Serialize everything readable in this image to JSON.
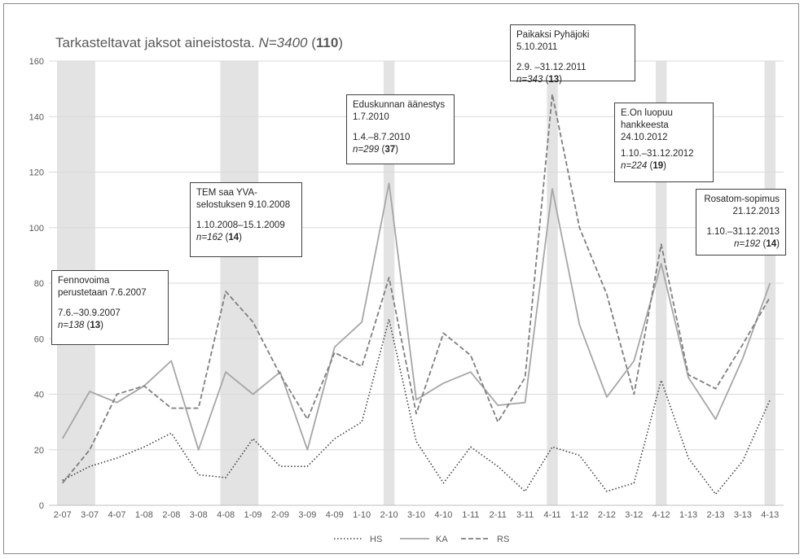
{
  "chart_data": {
    "type": "line",
    "title": {
      "prefix": "Tarkasteltavat jaksot aineistosta. ",
      "n_italic": "N=3400",
      "space": " (",
      "n_bold": "110",
      "close": ")"
    },
    "categories": [
      "2-07",
      "3-07",
      "4-07",
      "1-08",
      "2-08",
      "3-08",
      "4-08",
      "1-09",
      "2-09",
      "3-09",
      "4-09",
      "1-10",
      "2-10",
      "3-10",
      "4-10",
      "1-11",
      "2-11",
      "3-11",
      "4-11",
      "1-12",
      "2-12",
      "3-12",
      "4-12",
      "1-13",
      "2-13",
      "3-13",
      "4-13"
    ],
    "ylim": [
      0,
      160
    ],
    "yticks": [
      0,
      20,
      40,
      60,
      80,
      100,
      120,
      140,
      160
    ],
    "grid": true,
    "legend_position": "bottom",
    "series": [
      {
        "name": "HS",
        "style": "dotted",
        "color": "#404040",
        "values": [
          9,
          14,
          17,
          21,
          26,
          11,
          10,
          24,
          14,
          14,
          24,
          30,
          67,
          23,
          8,
          21,
          14,
          5,
          21,
          18,
          5,
          8,
          45,
          17,
          4,
          16,
          38
        ]
      },
      {
        "name": "KA",
        "style": "solid",
        "color": "#a6a6a6",
        "values": [
          24,
          41,
          37,
          43,
          52,
          20,
          48,
          40,
          48,
          20,
          57,
          66,
          116,
          38,
          44,
          48,
          36,
          37,
          114,
          65,
          39,
          52,
          87,
          46,
          31,
          53,
          80
        ]
      },
      {
        "name": "RS",
        "style": "dashed",
        "color": "#7f7f7f",
        "values": [
          8,
          20,
          40,
          43,
          35,
          35,
          77,
          66,
          47,
          31,
          55,
          50,
          82,
          33,
          62,
          54,
          30,
          46,
          148,
          100,
          76,
          40,
          94,
          47,
          42,
          58,
          75
        ]
      }
    ],
    "shaded_periods": [
      {
        "from": "2-07",
        "to": "3-07"
      },
      {
        "from": "4-08",
        "to": "1-09"
      },
      {
        "from": "2-10",
        "to": "2-10"
      },
      {
        "from": "4-11",
        "to": "4-11"
      },
      {
        "from": "4-12",
        "to": "4-12"
      },
      {
        "from": "4-13",
        "to": "4-13"
      }
    ],
    "annotations": [
      {
        "id": "fennovoima",
        "lines": [
          "Fennovoima",
          "perustetaan 7.6.2007"
        ],
        "period": "7.6.–30.9.2007",
        "n_italic": "n=138",
        "n_bold": "13"
      },
      {
        "id": "tem",
        "lines": [
          "TEM saa YVA-",
          "selostuksen 9.10.2008"
        ],
        "period": "1.10.2008–15.1.2009",
        "n_italic": "n=162",
        "n_bold": "14"
      },
      {
        "id": "eduskunta",
        "lines": [
          "Eduskunnan äänestys",
          "1.7.2010"
        ],
        "period": "1.4.–8.7.2010",
        "n_italic": "n=299",
        "n_bold": "37"
      },
      {
        "id": "pyhajoki",
        "lines": [
          "Paikaksi Pyhäjoki 5.10.2011"
        ],
        "period": "2.9. –31.12.2011",
        "n_italic": "n=343",
        "n_bold": "13"
      },
      {
        "id": "eon",
        "lines": [
          "E.On luopuu",
          "hankkeesta",
          "24.10.2012"
        ],
        "period": "1.10.–31.12.2012",
        "n_italic": "n=224",
        "n_bold": "19"
      },
      {
        "id": "rosatom",
        "lines": [
          "Rosatom-sopimus",
          "21.12.2013"
        ],
        "period": "1.10.–31.12.2013",
        "n_italic": "n=192",
        "n_bold": "14"
      }
    ]
  }
}
